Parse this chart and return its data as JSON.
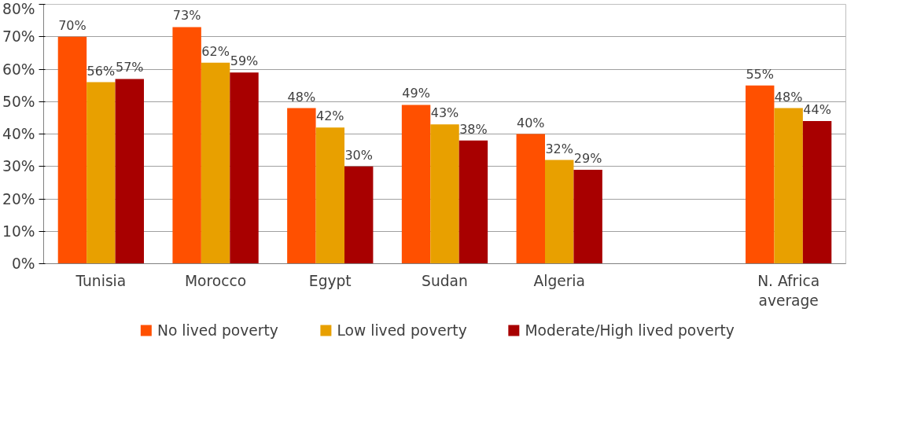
{
  "chart_data": {
    "type": "bar",
    "categories": [
      "Tunisia",
      "Morocco",
      "Egypt",
      "Sudan",
      "Algeria",
      null,
      "N. Africa\naverage"
    ],
    "series": [
      {
        "name": "No lived poverty",
        "color": "#ff5000",
        "values": [
          70,
          73,
          48,
          49,
          40,
          null,
          55
        ],
        "value_labels": [
          "70%",
          "73%",
          "48%",
          "49%",
          "40%",
          null,
          "55%"
        ]
      },
      {
        "name": "Low lived poverty",
        "color": "#e8a000",
        "values": [
          56,
          62,
          42,
          43,
          32,
          null,
          48
        ],
        "value_labels": [
          "56%",
          "62%",
          "42%",
          "43%",
          "32%",
          null,
          "48%"
        ]
      },
      {
        "name": "Moderate/High lived poverty",
        "color": "#a80000",
        "values": [
          57,
          59,
          30,
          38,
          29,
          null,
          44
        ],
        "value_labels": [
          "57%",
          "59%",
          "30%",
          "38%",
          "29%",
          null,
          "44%"
        ]
      }
    ],
    "ylim": [
      0,
      80
    ],
    "yticks": [
      {
        "value": 0,
        "label": "0%"
      },
      {
        "value": 10,
        "label": "10%"
      },
      {
        "value": 20,
        "label": "20%"
      },
      {
        "value": 30,
        "label": "30%"
      },
      {
        "value": 40,
        "label": "40%"
      },
      {
        "value": 50,
        "label": "50%"
      },
      {
        "value": 60,
        "label": "60%"
      },
      {
        "value": 70,
        "label": "70%"
      },
      {
        "value": 80,
        "label": "80%"
      }
    ],
    "grid": "y",
    "legend": "bottom"
  }
}
